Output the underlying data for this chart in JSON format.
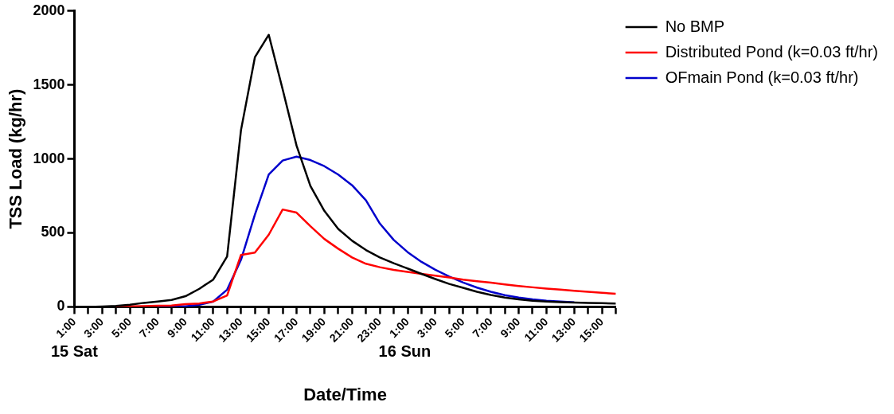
{
  "chart_data": {
    "type": "line",
    "xlabel": "Date/Time",
    "ylabel": "TSS Load (kg/hr)",
    "categories": [
      "1:00",
      null,
      "3:00",
      null,
      "5:00",
      null,
      "7:00",
      null,
      "9:00",
      null,
      "11:00",
      null,
      "13:00",
      null,
      "15:00",
      null,
      "17:00",
      null,
      "19:00",
      null,
      "21:00",
      null,
      "23:00",
      null,
      "1:00",
      null,
      "3:00",
      null,
      "5:00",
      null,
      "7:00",
      null,
      "9:00",
      null,
      "11:00",
      null,
      "13:00",
      null,
      "15:00",
      null
    ],
    "series": [
      {
        "name": "No BMP",
        "color": "#000000",
        "values": [
          0,
          0,
          2,
          6,
          14,
          27,
          36,
          47,
          72,
          122,
          184,
          340,
          1195,
          1687,
          1839,
          1470,
          1090,
          817,
          649,
          527,
          447,
          384,
          334,
          295,
          259,
          223,
          188,
          155,
          129,
          102,
          80,
          63,
          50,
          41,
          36,
          32,
          29,
          27,
          25,
          23
        ]
      },
      {
        "name": "Distributed Pond (k=0.03 ft/hr)",
        "color": "#ff0000",
        "values": [
          null,
          null,
          null,
          2,
          3,
          5,
          7,
          9,
          18,
          23,
          36,
          77,
          351,
          367,
          488,
          658,
          637,
          545,
          459,
          393,
          334,
          291,
          268,
          250,
          236,
          223,
          211,
          198,
          184,
          173,
          163,
          152,
          141,
          132,
          123,
          116,
          109,
          102,
          95,
          88
        ]
      },
      {
        "name": "OFmain Pond (k=0.03 ft/hr)",
        "color": "#0000cc",
        "values": [
          null,
          null,
          null,
          null,
          null,
          null,
          2,
          3,
          4,
          14,
          36,
          116,
          318,
          623,
          895,
          989,
          1015,
          992,
          951,
          894,
          822,
          720,
          563,
          452,
          370,
          304,
          250,
          205,
          164,
          130,
          102,
          79,
          63,
          50,
          41,
          36,
          30,
          null,
          null,
          null
        ]
      }
    ],
    "ylim": [
      0,
      2000
    ],
    "yticks": [
      0,
      500,
      1000,
      1500,
      2000
    ],
    "annotations": [
      "15 Sat",
      "16 Sun"
    ],
    "grid": false,
    "legend": "right",
    "marker": "none",
    "line_style": "solid"
  }
}
